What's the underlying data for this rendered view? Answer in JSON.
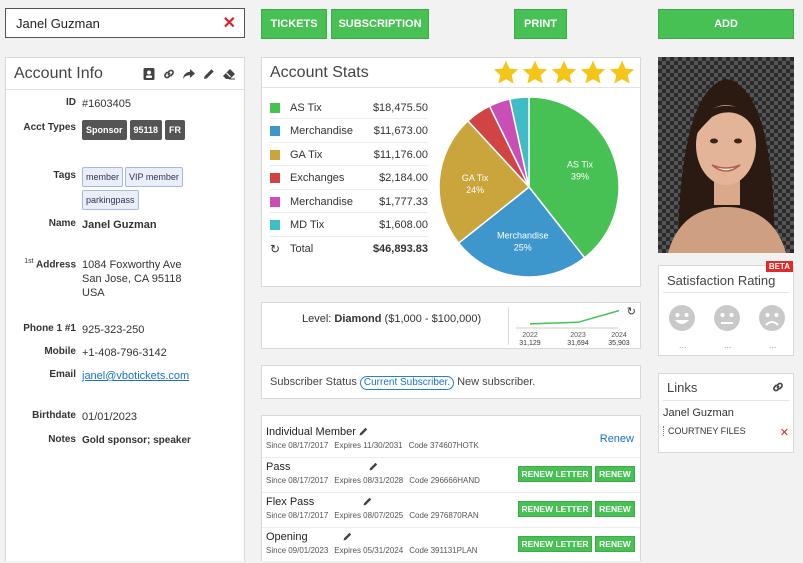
{
  "search": {
    "value": "Janel Guzman"
  },
  "toolbar": {
    "tickets_label": "TICKETS",
    "subscription_label": "SUBSCRIPTION",
    "print_label": "PRINT",
    "add_label": "ADD"
  },
  "account_info": {
    "title": "Account Info",
    "id_label": "ID",
    "id_value": "#1603405",
    "acct_types_label": "Acct Types",
    "acct_types": [
      "Sponsor",
      "95118",
      "FR"
    ],
    "tags_label": "Tags",
    "tags": [
      "member",
      "VIP member",
      "parkingpass"
    ],
    "name_label": "Name",
    "name_value": "Janel Guzman",
    "address_label_prefix": "1st",
    "address_label": "Address",
    "address_line1": "1084 Foxworthy Ave",
    "address_line2": "San Jose, CA 95118",
    "address_line3": "USA",
    "phone_label": "Phone 1 #1",
    "phone_value": "925-323-250",
    "mobile_label": "Mobile",
    "mobile_value": "+1-408-796-3142",
    "email_label": "Email",
    "email_value": "janel@vbotickets.com",
    "birthdate_label": "Birthdate",
    "birthdate_value": "01/01/2023",
    "notes_label": "Notes",
    "notes_value": "Gold sponsor; speaker"
  },
  "account_stats": {
    "title": "Account Stats",
    "rating_stars": 5,
    "star_color": "#f5c518",
    "rows": [
      {
        "label": "AS Tix",
        "amount": "$18,475.50",
        "color": "#47c153"
      },
      {
        "label": "Merchandise",
        "amount": "$11,673.00",
        "color": "#3d97cc"
      },
      {
        "label": "GA Tix",
        "amount": "$11,176.00",
        "color": "#c9a53b"
      },
      {
        "label": "Exchanges",
        "amount": "$2,184.00",
        "color": "#d04444"
      },
      {
        "label": "Merchandise",
        "amount": "$1,777.33",
        "color": "#c94fb7"
      },
      {
        "label": "MD Tix",
        "amount": "$1,608.00",
        "color": "#3fbcc6"
      }
    ],
    "total_label": "Total",
    "total_amount": "$46,893.83"
  },
  "chart_data": [
    {
      "type": "pie",
      "title": "",
      "slices": [
        {
          "label": "AS Tix",
          "value": 18475.5,
          "percent_label": "39%",
          "color": "#47c153"
        },
        {
          "label": "Merchandise",
          "value": 11673.0,
          "percent_label": "25%",
          "color": "#3d97cc"
        },
        {
          "label": "GA Tix",
          "value": 11176.0,
          "percent_label": "24%",
          "color": "#c9a53b"
        },
        {
          "label": "Exchanges",
          "value": 2184.0,
          "percent_label": "",
          "color": "#d04444"
        },
        {
          "label": "Merchandise",
          "value": 1777.33,
          "percent_label": "",
          "color": "#c94fb7"
        },
        {
          "label": "MD Tix",
          "value": 1608.0,
          "percent_label": "",
          "color": "#3fbcc6"
        }
      ]
    },
    {
      "type": "line",
      "title": "",
      "x": [
        "2022",
        "2023",
        "2024"
      ],
      "y": [
        31129,
        31694,
        35903
      ],
      "y_labels": [
        "31,129",
        "31,694",
        "35,903"
      ],
      "line_color": "#47c153"
    }
  ],
  "level": {
    "prefix": "Level:",
    "name": "Diamond",
    "range": "($1,000 - $100,000)"
  },
  "subscriber": {
    "label": "Subscriber Status",
    "status_pill": "Current Subscriber.",
    "status_text": "New subscriber."
  },
  "memberships": [
    {
      "name": "Individual Member",
      "since": "Since 08/17/2017",
      "expires": "Expires 11/30/2031",
      "code": "Code 374607HOTK",
      "action": "Renew"
    },
    {
      "name": "Pass",
      "since": "Since 08/17/2017",
      "expires": "Expires 08/31/2028",
      "code": "Code 296666HAND",
      "letter_label": "RENEW LETTER",
      "renew_label": "RENEW"
    },
    {
      "name": "Flex Pass",
      "since": "Since 08/17/2017",
      "expires": "Expires 08/07/2025",
      "code": "Code 2976870RAN",
      "letter_label": "RENEW LETTER",
      "renew_label": "RENEW"
    },
    {
      "name": "Opening",
      "since": "Since 09/01/2023",
      "expires": "Expires 05/31/2024",
      "code": "Code 391131PLAN",
      "letter_label": "RENEW LETTER",
      "renew_label": "RENEW"
    }
  ],
  "satisfaction": {
    "title": "Satisfaction Rating",
    "badge": "BETA",
    "captions": [
      "...",
      "...",
      "..."
    ]
  },
  "links": {
    "title": "Links",
    "name": "Janel Guzman",
    "item": "COURTNEY FILES"
  }
}
